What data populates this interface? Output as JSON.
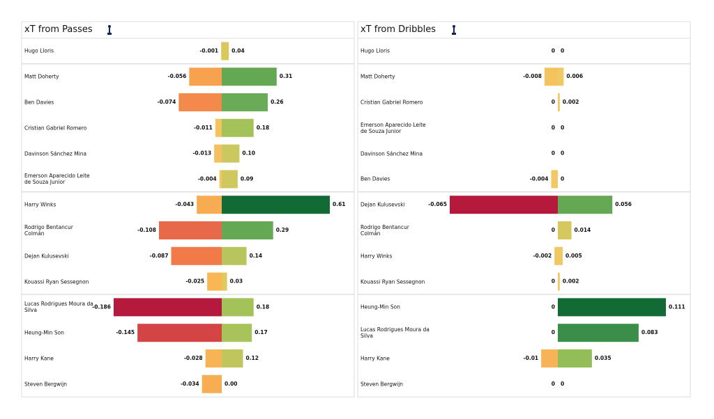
{
  "chart_data": [
    {
      "type": "diverging-bar",
      "title": "xT from Passes",
      "categories": [
        "Hugo Lloris",
        "Matt Doherty",
        "Ben Davies",
        "Cristian Gabriel Romero",
        "Davinson Sánchez Mina",
        "Emerson Aparecido Leite de Souza Junior",
        "Harry Winks",
        "Rodrigo Bentancur Colmán",
        "Dejan Kulusevski",
        "Kouassi Ryan Sessegnon",
        "Lucas Rodrigues Moura da Silva",
        "Heung-Min Son",
        "Harry Kane",
        "Steven Bergwijn"
      ],
      "xlim": [
        -0.186,
        0.61
      ],
      "series": [
        {
          "values": [
            -0.001,
            -0.056,
            -0.074,
            -0.011,
            -0.013,
            -0.004,
            -0.043,
            -0.108,
            -0.087,
            -0.025,
            -0.186,
            -0.145,
            -0.028,
            -0.034
          ],
          "colors": [
            "#f0c75e",
            "#f8a24f",
            "#f4894c",
            "#f5c35e",
            "#f5c060",
            "#f0c864",
            "#f8ac52",
            "#e8684a",
            "#f07a48",
            "#f8b654",
            "#b5193c",
            "#d44444",
            "#f8b353",
            "#f7ad52"
          ]
        },
        {
          "values": [
            0.04,
            0.31,
            0.26,
            0.18,
            0.1,
            0.09,
            0.61,
            0.29,
            0.14,
            0.03,
            0.18,
            0.17,
            0.12,
            0
          ],
          "value_labels": [
            "0.04",
            "0.31",
            "0.26",
            "0.18",
            "0.10",
            "0.09",
            "0.61",
            "0.29",
            "0.14",
            "0.03",
            "0.18",
            "0.17",
            "0.12",
            "0.00"
          ],
          "colors": [
            "#dac85c",
            "#64a853",
            "#6aac55",
            "#a4c25a",
            "#cac85e",
            "#cfc85f",
            "#126b35",
            "#64a853",
            "#b8c55c",
            "#e0c85f",
            "#a4c25a",
            "#a8c35a",
            "#c0c65c",
            "#f0c864"
          ]
        }
      ]
    },
    {
      "type": "diverging-bar",
      "title": "xT from Dribbles",
      "categories": [
        "Hugo Lloris",
        "Matt Doherty",
        "Cristian Gabriel Romero",
        "Emerson Aparecido Leite de Souza Junior",
        "Davinson Sánchez Mina",
        "Ben Davies",
        "Dejan Kulusevski",
        "Rodrigo Bentancur Colmán",
        "Harry Winks",
        "Kouassi Ryan Sessegnon",
        "Heung-Min Son",
        "Lucas Rodrigues Moura da Silva",
        "Harry Kane",
        "Steven Bergwijn"
      ],
      "xlim": [
        -0.065,
        0.111
      ],
      "series": [
        {
          "values": [
            0,
            -0.008,
            0,
            0,
            0,
            -0.004,
            -0.065,
            0,
            -0.002,
            0,
            0,
            0,
            -0.01,
            0
          ],
          "colors": [
            "#f0c864",
            "#f5c35e",
            "#f0c864",
            "#f0c864",
            "#f0c864",
            "#f0c864",
            "#b5193c",
            "#f0c864",
            "#f3c75f",
            "#f0c864",
            "#f0c864",
            "#f0c864",
            "#f7b356",
            "#f0c864"
          ]
        },
        {
          "values": [
            0,
            0.006,
            0.002,
            0,
            0,
            0,
            0.056,
            0.014,
            0.005,
            0.002,
            0.111,
            0.083,
            0.035,
            0
          ],
          "colors": [
            "#f0c864",
            "#f0c864",
            "#f0c864",
            "#f0c864",
            "#f0c864",
            "#f0c864",
            "#64a853",
            "#d6c85e",
            "#f0c864",
            "#f0c864",
            "#126b35",
            "#3b8e4a",
            "#93bd57",
            "#f0c864"
          ]
        }
      ]
    }
  ]
}
